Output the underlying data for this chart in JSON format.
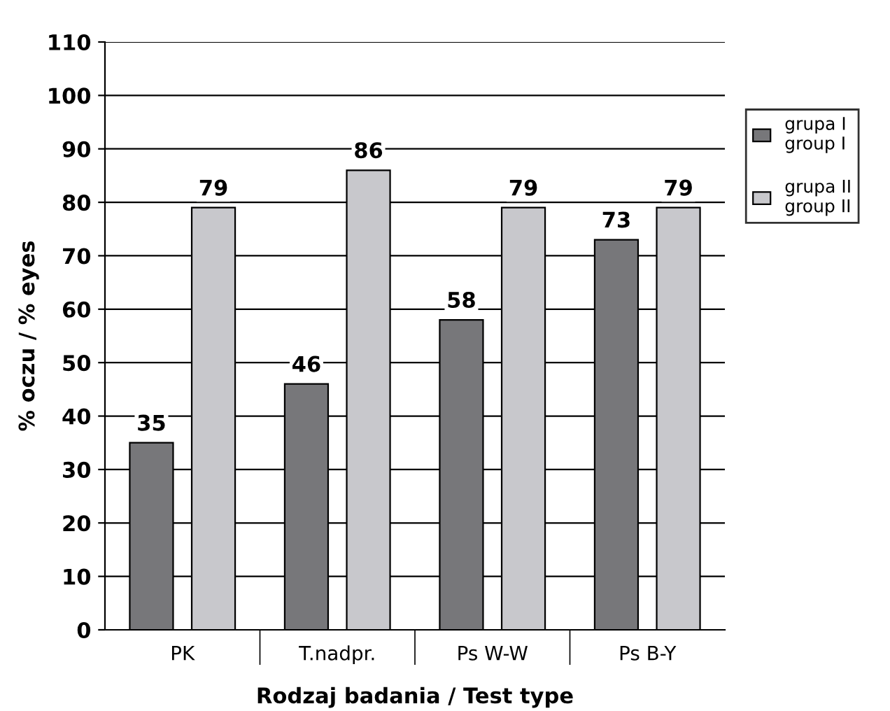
{
  "chart_data": {
    "type": "bar",
    "xlabel": "Rodzaj badania / Test type",
    "ylabel": "% oczu / % eyes",
    "categories": [
      "PK",
      "T.nadpr.",
      "Ps W-W",
      "Ps B-Y"
    ],
    "series": [
      {
        "name": "grupa I\ngroup I",
        "color": "#77777a",
        "values": [
          35,
          46,
          58,
          73
        ]
      },
      {
        "name": "grupa II\ngroup II",
        "color": "#c8c8cc",
        "values": [
          79,
          86,
          79,
          79
        ]
      }
    ],
    "ylim": [
      0,
      110
    ],
    "yticks": [
      0,
      10,
      20,
      30,
      40,
      50,
      60,
      70,
      80,
      90,
      100,
      110
    ],
    "grid": "y",
    "legend": "top right",
    "data_labels": true
  }
}
